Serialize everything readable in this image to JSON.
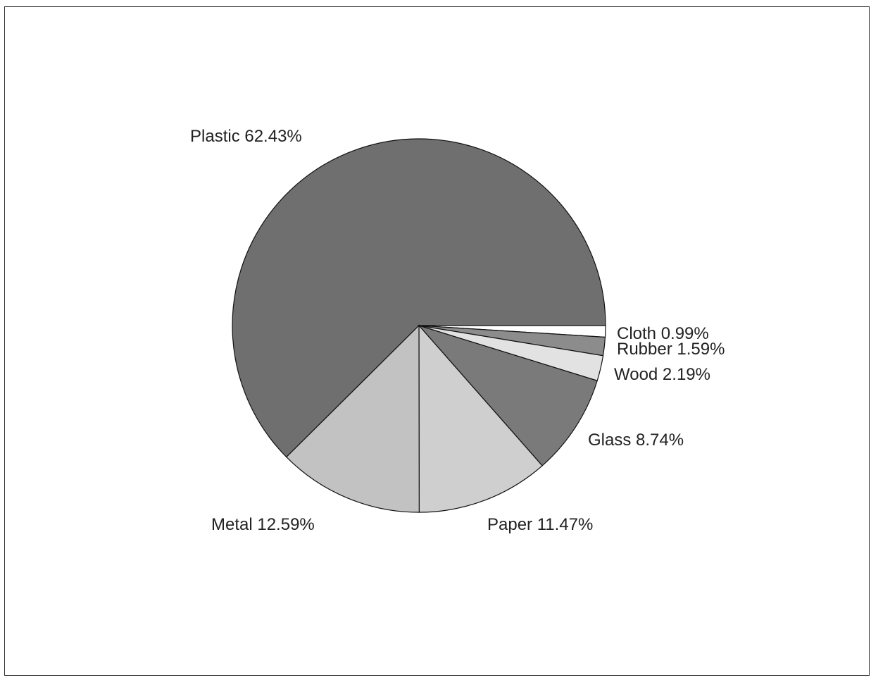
{
  "chart_data": {
    "type": "pie",
    "title": "",
    "slices": [
      {
        "name": "Plastic",
        "value": 62.43,
        "label": "Plastic 62.43%",
        "color": "#6f6f6f"
      },
      {
        "name": "Cloth",
        "value": 0.99,
        "label": "Cloth 0.99%",
        "color": "#ffffff"
      },
      {
        "name": "Rubber",
        "value": 1.59,
        "label": "Rubber 1.59%",
        "color": "#8c8c8c"
      },
      {
        "name": "Wood",
        "value": 2.19,
        "label": "Wood 2.19%",
        "color": "#e2e2e2"
      },
      {
        "name": "Glass",
        "value": 8.74,
        "label": "Glass 8.74%",
        "color": "#7a7a7a"
      },
      {
        "name": "Paper",
        "value": 11.47,
        "label": "Paper 11.47%",
        "color": "#cfcfcf"
      },
      {
        "name": "Metal",
        "value": 12.59,
        "label": "Metal 12.59%",
        "color": "#c2c2c2"
      }
    ],
    "legend": "none"
  }
}
